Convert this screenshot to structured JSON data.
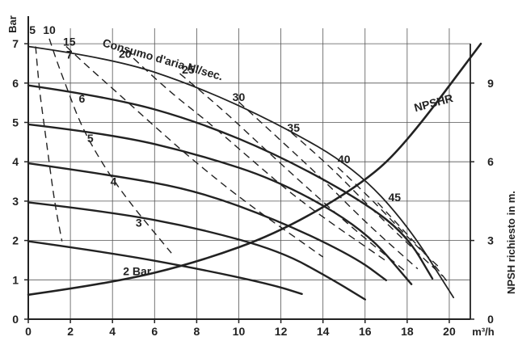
{
  "chart_data": {
    "type": "line",
    "title": "",
    "xlabel": "m³/h",
    "ylabel": "Bar",
    "y2label": "NPSH richiesto in m.",
    "annotation": "Consumo d'aria Nl/sec.",
    "xlim": [
      0,
      21
    ],
    "ylim": [
      0,
      7.7
    ],
    "y2lim": [
      0,
      11.55
    ],
    "grid": true,
    "x_ticks": [
      "0",
      "2",
      "4",
      "6",
      "8",
      "10",
      "12",
      "14",
      "16",
      "18",
      "20"
    ],
    "y_ticks": [
      "0",
      "1",
      "2",
      "3",
      "4",
      "5",
      "6",
      "7"
    ],
    "y2_ticks": [
      "0",
      "3",
      "6",
      "9"
    ],
    "series": [
      {
        "name": "7",
        "points": [
          [
            0,
            6.93
          ],
          [
            4,
            6.63
          ],
          [
            8,
            5.92
          ],
          [
            12,
            4.93
          ],
          [
            15.5,
            3.84
          ],
          [
            18,
            2.41
          ],
          [
            20.2,
            0.55
          ]
        ]
      },
      {
        "name": "6",
        "points": [
          [
            0,
            5.94
          ],
          [
            4,
            5.63
          ],
          [
            8,
            5.03
          ],
          [
            12,
            4.14
          ],
          [
            16,
            2.96
          ],
          [
            18,
            2.11
          ],
          [
            19.2,
            1.03
          ]
        ]
      },
      {
        "name": "5",
        "points": [
          [
            0,
            4.95
          ],
          [
            4,
            4.7
          ],
          [
            8,
            4.2
          ],
          [
            12,
            3.5
          ],
          [
            16,
            2.27
          ],
          [
            18.2,
            0.89
          ]
        ]
      },
      {
        "name": "4",
        "points": [
          [
            0,
            3.96
          ],
          [
            4,
            3.66
          ],
          [
            8,
            3.27
          ],
          [
            12,
            2.48
          ],
          [
            15.5,
            1.58
          ],
          [
            17,
            0.99
          ]
        ]
      },
      {
        "name": "3",
        "points": [
          [
            0,
            2.97
          ],
          [
            4,
            2.72
          ],
          [
            8,
            2.32
          ],
          [
            12,
            1.73
          ],
          [
            14.5,
            0.99
          ],
          [
            16,
            0.5
          ]
        ]
      },
      {
        "name": "2 Bar",
        "points": [
          [
            0,
            1.98
          ],
          [
            4,
            1.68
          ],
          [
            8,
            1.29
          ],
          [
            11.5,
            0.89
          ],
          [
            13,
            0.64
          ]
        ]
      },
      {
        "name": "NPSHR",
        "axis": "y2",
        "points": [
          [
            0,
            0.93
          ],
          [
            4,
            1.38
          ],
          [
            8,
            2.16
          ],
          [
            12,
            3.32
          ],
          [
            16,
            5.23
          ],
          [
            18,
            6.76
          ],
          [
            21.5,
            10.5
          ]
        ]
      }
    ],
    "flow_series": [
      {
        "name": "5",
        "points": [
          [
            0.35,
            6.93
          ],
          [
            0.5,
            5.94
          ],
          [
            0.75,
            4.95
          ],
          [
            1,
            3.96
          ],
          [
            1.25,
            2.97
          ],
          [
            1.6,
            1.98
          ]
        ]
      },
      {
        "name": "10",
        "points": [
          [
            1,
            7.13
          ],
          [
            1.3,
            6.63
          ],
          [
            1.8,
            5.92
          ],
          [
            2.5,
            4.93
          ],
          [
            3.5,
            3.96
          ],
          [
            4.8,
            2.97
          ],
          [
            6.8,
            1.68
          ]
        ]
      },
      {
        "name": "15",
        "points": [
          [
            1.8,
            6.93
          ],
          [
            2.8,
            6.43
          ],
          [
            4.3,
            5.72
          ],
          [
            6,
            4.9
          ],
          [
            8,
            3.96
          ],
          [
            10.5,
            2.9
          ],
          [
            14,
            1.58
          ]
        ]
      },
      {
        "name": "20",
        "points": [
          [
            5,
            6.63
          ],
          [
            6.5,
            5.87
          ],
          [
            8.5,
            5.03
          ],
          [
            10.5,
            4.1
          ],
          [
            13,
            2.96
          ],
          [
            17,
            1.48
          ]
        ]
      },
      {
        "name": "25",
        "points": [
          [
            7.2,
            6.24
          ],
          [
            9,
            5.44
          ],
          [
            11,
            4.44
          ],
          [
            13,
            3.46
          ],
          [
            15.5,
            2.27
          ],
          [
            18,
            1.18
          ]
        ]
      },
      {
        "name": "30",
        "points": [
          [
            10,
            5.52
          ],
          [
            12,
            4.54
          ],
          [
            14,
            3.55
          ],
          [
            16,
            2.47
          ],
          [
            18.5,
            1.28
          ]
        ]
      },
      {
        "name": "35",
        "points": [
          [
            12.5,
            4.74
          ],
          [
            14.2,
            3.96
          ],
          [
            16.2,
            2.86
          ],
          [
            18.5,
            1.68
          ],
          [
            19.7,
            1.09
          ]
        ]
      },
      {
        "name": "40",
        "points": [
          [
            14.7,
            3.86
          ],
          [
            16.3,
            3.06
          ],
          [
            18.2,
            1.98
          ],
          [
            19.6,
            1.28
          ]
        ]
      },
      {
        "name": "45",
        "points": [
          [
            16.6,
            2.96
          ],
          [
            17.8,
            2.27
          ],
          [
            19,
            1.58
          ],
          [
            20,
            0.89
          ]
        ]
      }
    ]
  }
}
